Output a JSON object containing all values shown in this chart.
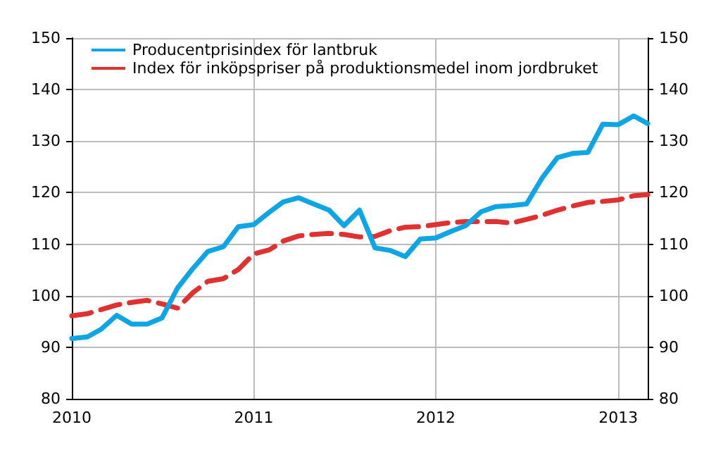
{
  "chart_data": {
    "type": "line",
    "x": [
      "2010-01",
      "2010-02",
      "2010-03",
      "2010-04",
      "2010-05",
      "2010-06",
      "2010-07",
      "2010-08",
      "2010-09",
      "2010-10",
      "2010-11",
      "2010-12",
      "2011-01",
      "2011-02",
      "2011-03",
      "2011-04",
      "2011-05",
      "2011-06",
      "2011-07",
      "2011-08",
      "2011-09",
      "2011-10",
      "2011-11",
      "2011-12",
      "2012-01",
      "2012-02",
      "2012-03",
      "2012-04",
      "2012-05",
      "2012-06",
      "2012-07",
      "2012-08",
      "2012-09",
      "2012-10",
      "2012-11",
      "2012-12",
      "2013-01",
      "2013-02",
      "2013-03"
    ],
    "series": [
      {
        "name": "Producentprisindex för lantbruk",
        "color": "#0ea5e4",
        "line_style": "solid",
        "values": [
          91.7,
          92,
          93.5,
          96.2,
          94.5,
          94.5,
          95.7,
          101.5,
          105.3,
          108.6,
          109.5,
          113.4,
          113.8,
          116.2,
          118.2,
          119,
          117.8,
          116.6,
          113.6,
          116.6,
          109.3,
          108.8,
          107.6,
          111,
          111.2,
          112.5,
          113.6,
          116.3,
          117.3,
          117.5,
          117.8,
          122.8,
          126.8,
          127.6,
          127.8,
          133.3,
          133.2,
          134.9,
          133.4
        ]
      },
      {
        "name": "Index för inköpspriser på produktionsmedel inom jordbruket",
        "color": "#e03131",
        "line_style": "dashed",
        "values": [
          96.1,
          96.5,
          97.3,
          98.2,
          98.7,
          99.1,
          98.4,
          97.6,
          100.6,
          102.8,
          103.3,
          105.1,
          108.1,
          108.9,
          110.6,
          111.6,
          111.9,
          112.1,
          111.9,
          111.4,
          111.5,
          112.6,
          113.3,
          113.4,
          113.8,
          114.2,
          114.4,
          114.4,
          114.4,
          114.1,
          114.8,
          115.6,
          116.6,
          117.4,
          118.1,
          118.3,
          118.6,
          119.4,
          119.6
        ]
      }
    ],
    "xlim": [
      "2010-01",
      "2013-03"
    ],
    "xticks": [
      {
        "value": "2010-01",
        "label": "2010"
      },
      {
        "value": "2011-01",
        "label": "2011"
      },
      {
        "value": "2012-01",
        "label": "2012"
      },
      {
        "value": "2013-01",
        "label": "2013"
      }
    ],
    "ylim": [
      80,
      150
    ],
    "yticks": [
      80,
      90,
      100,
      110,
      120,
      130,
      140,
      150
    ],
    "y2lim": [
      80,
      150
    ],
    "y2ticks": [
      80,
      90,
      100,
      110,
      120,
      130,
      140,
      150
    ],
    "grid": true,
    "legend": "top left",
    "marker": "none"
  }
}
